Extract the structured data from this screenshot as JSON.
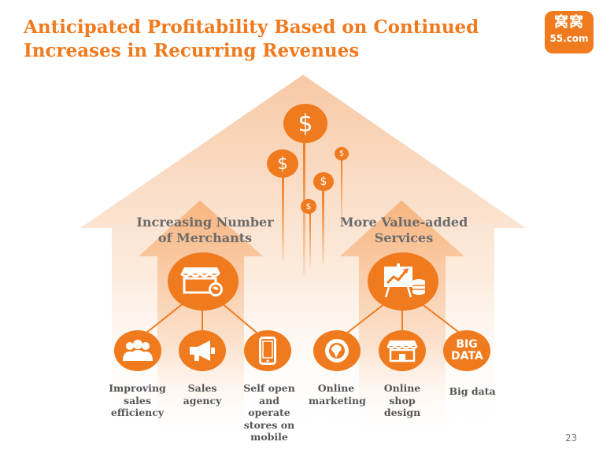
{
  "slide": {
    "title": "Anticipated Profitability Based on Continued Increases in Recurring Revenues",
    "page_number": "23"
  },
  "logo": {
    "cn_text": "窝窝",
    "en_text": "55.com"
  },
  "colors": {
    "accent": "#f07a1e",
    "arrow_light": "#fbd9bf",
    "text": "#555555"
  },
  "sections": [
    {
      "label": "Increasing Number of Merchants",
      "hub_icon": "storefront-icon",
      "items": [
        {
          "label": "Improving sales efficiency",
          "icon": "people-icon"
        },
        {
          "label": "Sales agency",
          "icon": "megaphone-icon"
        },
        {
          "label": "Self open and operate stores on mobile",
          "icon": "mobile-phone-icon"
        }
      ]
    },
    {
      "label": "More Value-added Services",
      "hub_icon": "presentation-chart-icon",
      "items": [
        {
          "label": "Online marketing",
          "icon": "globe-icon"
        },
        {
          "label": "Online shop design",
          "icon": "shop-icon"
        },
        {
          "label": "Big data",
          "icon": "big-data-icon",
          "icon_text": "BIG DATA"
        }
      ]
    }
  ],
  "dollar_symbol": "$"
}
